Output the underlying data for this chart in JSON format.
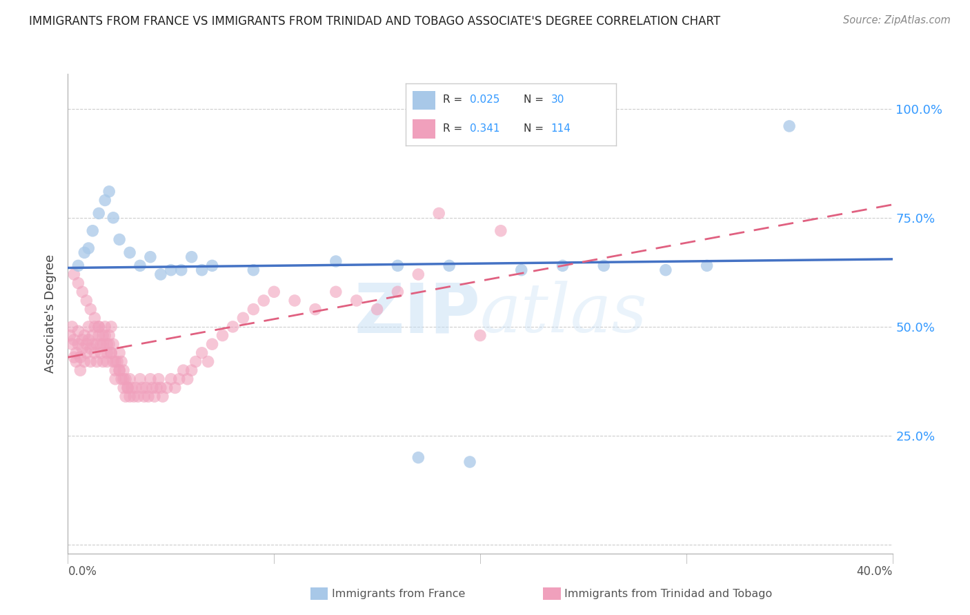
{
  "title": "IMMIGRANTS FROM FRANCE VS IMMIGRANTS FROM TRINIDAD AND TOBAGO ASSOCIATE'S DEGREE CORRELATION CHART",
  "source": "Source: ZipAtlas.com",
  "ylabel": "Associate's Degree",
  "xlim": [
    0.0,
    0.4
  ],
  "ylim": [
    -0.02,
    1.08
  ],
  "watermark_zip": "ZIP",
  "watermark_atlas": "atlas",
  "r1": "0.025",
  "n1": "30",
  "r2": "0.341",
  "n2": "114",
  "color_france": "#a8c8e8",
  "color_tt": "#f0a0bc",
  "color_france_line": "#4472c4",
  "color_tt_line": "#e06080",
  "label1": "Immigrants from France",
  "label2": "Immigrants from Trinidad and Tobago",
  "ytick_vals": [
    0.0,
    0.25,
    0.5,
    0.75,
    1.0
  ],
  "ytick_labels": [
    "",
    "25.0%",
    "50.0%",
    "75.0%",
    "100.0%"
  ],
  "france_x": [
    0.005,
    0.008,
    0.01,
    0.012,
    0.015,
    0.018,
    0.02,
    0.022,
    0.025,
    0.03,
    0.035,
    0.04,
    0.045,
    0.05,
    0.055,
    0.06,
    0.065,
    0.07,
    0.09,
    0.13,
    0.16,
    0.185,
    0.22,
    0.24,
    0.26,
    0.29,
    0.31,
    0.17,
    0.195,
    0.35
  ],
  "france_y": [
    0.64,
    0.67,
    0.68,
    0.72,
    0.76,
    0.79,
    0.81,
    0.75,
    0.7,
    0.67,
    0.64,
    0.66,
    0.62,
    0.63,
    0.63,
    0.66,
    0.63,
    0.64,
    0.63,
    0.65,
    0.64,
    0.64,
    0.63,
    0.64,
    0.64,
    0.63,
    0.64,
    0.2,
    0.19,
    0.96
  ],
  "tt_x": [
    0.001,
    0.002,
    0.002,
    0.003,
    0.003,
    0.004,
    0.004,
    0.005,
    0.005,
    0.006,
    0.006,
    0.007,
    0.007,
    0.008,
    0.008,
    0.009,
    0.009,
    0.01,
    0.01,
    0.011,
    0.011,
    0.012,
    0.012,
    0.013,
    0.013,
    0.014,
    0.014,
    0.015,
    0.015,
    0.016,
    0.016,
    0.017,
    0.017,
    0.018,
    0.018,
    0.019,
    0.019,
    0.02,
    0.02,
    0.021,
    0.021,
    0.022,
    0.022,
    0.023,
    0.023,
    0.024,
    0.025,
    0.025,
    0.026,
    0.026,
    0.027,
    0.027,
    0.028,
    0.028,
    0.029,
    0.03,
    0.03,
    0.031,
    0.032,
    0.033,
    0.034,
    0.035,
    0.036,
    0.037,
    0.038,
    0.039,
    0.04,
    0.041,
    0.042,
    0.043,
    0.044,
    0.045,
    0.046,
    0.048,
    0.05,
    0.052,
    0.054,
    0.056,
    0.058,
    0.06,
    0.062,
    0.065,
    0.068,
    0.07,
    0.075,
    0.08,
    0.085,
    0.09,
    0.095,
    0.1,
    0.11,
    0.12,
    0.13,
    0.14,
    0.15,
    0.16,
    0.17,
    0.18,
    0.2,
    0.21,
    0.003,
    0.005,
    0.007,
    0.009,
    0.011,
    0.013,
    0.015,
    0.017,
    0.019,
    0.021,
    0.023,
    0.025,
    0.027,
    0.029
  ],
  "tt_y": [
    0.48,
    0.5,
    0.46,
    0.43,
    0.47,
    0.44,
    0.42,
    0.46,
    0.49,
    0.4,
    0.43,
    0.47,
    0.45,
    0.42,
    0.48,
    0.46,
    0.44,
    0.5,
    0.47,
    0.45,
    0.42,
    0.46,
    0.48,
    0.5,
    0.44,
    0.42,
    0.46,
    0.48,
    0.5,
    0.46,
    0.44,
    0.42,
    0.46,
    0.48,
    0.5,
    0.44,
    0.42,
    0.46,
    0.48,
    0.5,
    0.44,
    0.42,
    0.46,
    0.4,
    0.38,
    0.42,
    0.44,
    0.4,
    0.42,
    0.38,
    0.4,
    0.36,
    0.38,
    0.34,
    0.36,
    0.38,
    0.34,
    0.36,
    0.34,
    0.36,
    0.34,
    0.38,
    0.36,
    0.34,
    0.36,
    0.34,
    0.38,
    0.36,
    0.34,
    0.36,
    0.38,
    0.36,
    0.34,
    0.36,
    0.38,
    0.36,
    0.38,
    0.4,
    0.38,
    0.4,
    0.42,
    0.44,
    0.42,
    0.46,
    0.48,
    0.5,
    0.52,
    0.54,
    0.56,
    0.58,
    0.56,
    0.54,
    0.58,
    0.56,
    0.54,
    0.58,
    0.62,
    0.76,
    0.48,
    0.72,
    0.62,
    0.6,
    0.58,
    0.56,
    0.54,
    0.52,
    0.5,
    0.48,
    0.46,
    0.44,
    0.42,
    0.4,
    0.38,
    0.36
  ]
}
